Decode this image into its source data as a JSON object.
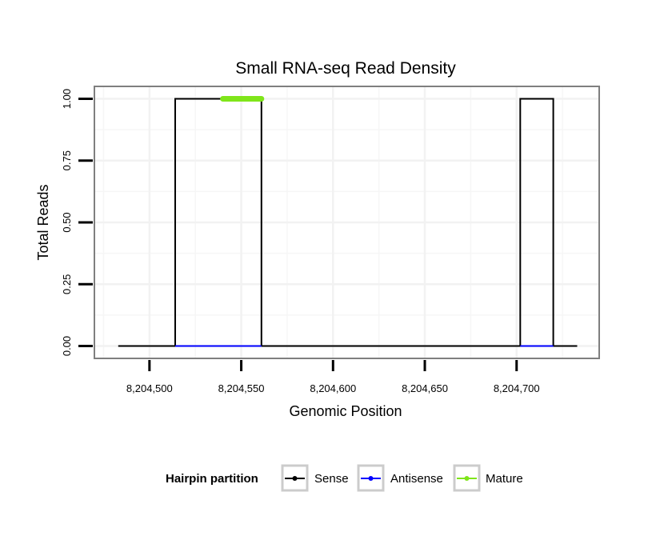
{
  "chart_data": {
    "type": "line",
    "title": "Small RNA-seq Read Density",
    "xlabel": "Genomic Position",
    "ylabel": "Total Reads",
    "xlim": [
      8204470,
      8204745
    ],
    "ylim": [
      -0.05,
      1.05
    ],
    "x_ticks": [
      8204500,
      8204550,
      8204600,
      8204650,
      8204700
    ],
    "x_tick_labels": [
      "8,204,500",
      "8,204,550",
      "8,204,600",
      "8,204,650",
      "8,204,700"
    ],
    "y_ticks": [
      0,
      0.25,
      0.5,
      0.75,
      1
    ],
    "y_tick_labels": [
      "0.00",
      "0.25",
      "0.50",
      "0.75",
      "1.00"
    ],
    "grid": true,
    "series": [
      {
        "name": "Sense",
        "color": "#000000",
        "points": [
          [
            8204483,
            0
          ],
          [
            8204514,
            0
          ],
          [
            8204514,
            1
          ],
          [
            8204561,
            1
          ],
          [
            8204561,
            0
          ],
          [
            8204702,
            0
          ],
          [
            8204702,
            1
          ],
          [
            8204720,
            1
          ],
          [
            8204720,
            0
          ],
          [
            8204733,
            0
          ]
        ]
      },
      {
        "name": "Antisense",
        "color": "#0000ff",
        "points": [
          [
            8204514,
            0
          ],
          [
            8204561,
            0
          ]
        ]
      },
      {
        "name": "Antisense",
        "color": "#0000ff",
        "points": [
          [
            8204702,
            0
          ],
          [
            8204720,
            0
          ]
        ]
      },
      {
        "name": "Mature",
        "color": "#7fe51a",
        "points": [
          [
            8204540,
            1
          ],
          [
            8204561,
            1
          ]
        ]
      }
    ],
    "legend": {
      "title": "Hairpin partition",
      "position": "bottom",
      "entries": [
        {
          "label": "Sense",
          "color": "#000000"
        },
        {
          "label": "Antisense",
          "color": "#0000ff"
        },
        {
          "label": "Mature",
          "color": "#7fe51a"
        }
      ]
    }
  }
}
